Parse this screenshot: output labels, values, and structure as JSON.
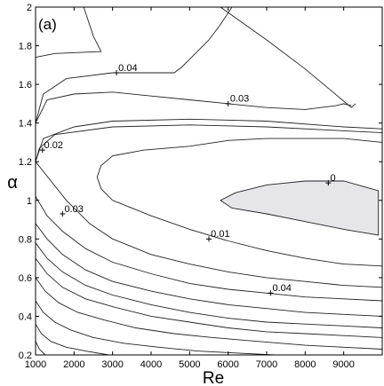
{
  "chart_data": {
    "type": "contour",
    "panel_label": "(a)",
    "xlabel": "Re",
    "ylabel": "α",
    "xlim": [
      1000,
      10000
    ],
    "ylim": [
      0.2,
      2.0
    ],
    "xticks": [
      1000,
      2000,
      3000,
      4000,
      5000,
      6000,
      7000,
      8000,
      9000
    ],
    "yticks": [
      0.2,
      0.4,
      0.6,
      0.8,
      1,
      1.2,
      1.4,
      1.6,
      1.8,
      2
    ],
    "shaded_region": {
      "level": 0,
      "color": "#e6e6ea",
      "boundary": [
        [
          9900,
          1.05
        ],
        [
          9000,
          1.1
        ],
        [
          8000,
          1.1
        ],
        [
          7000,
          1.08
        ],
        [
          6200,
          1.04
        ],
        [
          5800,
          1.0
        ],
        [
          6100,
          0.96
        ],
        [
          7000,
          0.93
        ],
        [
          8000,
          0.89
        ],
        [
          9000,
          0.85
        ],
        [
          9900,
          0.82
        ]
      ]
    },
    "contours": [
      {
        "label": null,
        "points": [
          [
            2250,
            2.0
          ],
          [
            2500,
            1.85
          ],
          [
            2700,
            1.77
          ],
          [
            1500,
            1.76
          ],
          [
            1000,
            1.74
          ]
        ]
      },
      {
        "label": null,
        "points": [
          [
            5800,
            2.0
          ],
          [
            7000,
            1.83
          ],
          [
            8000,
            1.68
          ],
          [
            9200,
            1.48
          ],
          [
            9300,
            1.5
          ]
        ]
      },
      {
        "label": null,
        "points": [
          [
            1000,
            1.4
          ],
          [
            1200,
            1.55
          ],
          [
            1800,
            1.63
          ],
          [
            3000,
            1.66
          ],
          [
            4000,
            1.66
          ],
          [
            4600,
            1.66
          ],
          [
            4800,
            1.69
          ],
          [
            5000,
            1.73
          ],
          [
            5200,
            1.77
          ],
          [
            5500,
            1.83
          ],
          [
            5800,
            1.91
          ],
          [
            6100,
            2.0
          ]
        ]
      },
      {
        "label": null,
        "points": [
          [
            1000,
            1.4
          ],
          [
            1300,
            1.52
          ],
          [
            2000,
            1.55
          ],
          [
            3000,
            1.56
          ],
          [
            4000,
            1.54
          ],
          [
            5000,
            1.52
          ],
          [
            6000,
            1.5
          ],
          [
            7000,
            1.48
          ],
          [
            8000,
            1.47
          ],
          [
            8800,
            1.49
          ],
          [
            9000,
            1.5
          ],
          [
            9200,
            1.49
          ]
        ]
      },
      {
        "label": "0.04",
        "at": [
          3100,
          1.66
        ],
        "text_at": [
          3150,
          1.67
        ]
      },
      {
        "label": "0.03",
        "at": [
          6000,
          1.5
        ],
        "text_at": [
          6050,
          1.51
        ]
      },
      {
        "label": null,
        "points": [
          [
            1000,
            1.2
          ],
          [
            1200,
            1.32
          ],
          [
            2000,
            1.38
          ],
          [
            3000,
            1.41
          ],
          [
            5000,
            1.42
          ],
          [
            7000,
            1.41
          ],
          [
            9000,
            1.38
          ],
          [
            10000,
            1.37
          ]
        ]
      },
      {
        "label": "0.02",
        "at": [
          1180,
          1.26
        ],
        "text_at": [
          1220,
          1.27
        ]
      },
      {
        "label": null,
        "points": [
          [
            1000,
            1.2
          ],
          [
            1100,
            1.27
          ],
          [
            1500,
            1.34
          ],
          [
            3000,
            1.38
          ],
          [
            5000,
            1.39
          ],
          [
            7000,
            1.38
          ],
          [
            9000,
            1.36
          ],
          [
            10000,
            1.35
          ]
        ]
      },
      {
        "label": null,
        "points": [
          [
            10000,
            1.3
          ],
          [
            9000,
            1.32
          ],
          [
            7000,
            1.32
          ],
          [
            6000,
            1.31
          ],
          [
            5000,
            1.28
          ],
          [
            3800,
            1.26
          ],
          [
            3000,
            1.23
          ],
          [
            2700,
            1.18
          ],
          [
            2600,
            1.12
          ],
          [
            2700,
            1.06
          ],
          [
            3000,
            1.0
          ],
          [
            4000,
            0.92
          ],
          [
            5000,
            0.85
          ],
          [
            6000,
            0.79
          ],
          [
            7000,
            0.74
          ],
          [
            8000,
            0.7
          ],
          [
            9000,
            0.67
          ],
          [
            10000,
            0.66
          ]
        ]
      },
      {
        "label": "0.01",
        "at": [
          5500,
          0.8
        ],
        "text_at": [
          5550,
          0.81
        ]
      },
      {
        "label": "0.03",
        "at": [
          1700,
          0.93
        ],
        "text_at": [
          1750,
          0.94
        ]
      },
      {
        "label": "0",
        "at": [
          8600,
          1.09
        ],
        "text_at": [
          8650,
          1.1
        ]
      },
      {
        "label": "0.04",
        "at": [
          7100,
          0.52
        ],
        "text_at": [
          7150,
          0.53
        ]
      },
      {
        "label": null,
        "points": [
          [
            1000,
            1.2
          ],
          [
            1400,
            1.1
          ],
          [
            1800,
            1.0
          ],
          [
            2400,
            0.88
          ],
          [
            3000,
            0.8
          ],
          [
            4000,
            0.72
          ],
          [
            5000,
            0.67
          ],
          [
            6000,
            0.63
          ],
          [
            7000,
            0.6
          ],
          [
            8000,
            0.58
          ],
          [
            9000,
            0.56
          ],
          [
            10000,
            0.55
          ]
        ]
      },
      {
        "label": null,
        "points": [
          [
            1000,
            1.02
          ],
          [
            1300,
            0.92
          ],
          [
            1700,
            0.84
          ],
          [
            2300,
            0.75
          ],
          [
            3000,
            0.68
          ],
          [
            4000,
            0.62
          ],
          [
            5000,
            0.57
          ],
          [
            6000,
            0.54
          ],
          [
            7000,
            0.52
          ],
          [
            8000,
            0.5
          ],
          [
            9000,
            0.49
          ],
          [
            10000,
            0.48
          ]
        ]
      },
      {
        "label": null,
        "points": [
          [
            1000,
            0.88
          ],
          [
            1300,
            0.8
          ],
          [
            1700,
            0.72
          ],
          [
            2300,
            0.64
          ],
          [
            3000,
            0.58
          ],
          [
            4000,
            0.53
          ],
          [
            5000,
            0.49
          ],
          [
            6000,
            0.46
          ],
          [
            7000,
            0.44
          ],
          [
            8000,
            0.42
          ],
          [
            9000,
            0.41
          ],
          [
            10000,
            0.4
          ]
        ]
      },
      {
        "label": null,
        "points": [
          [
            1000,
            0.78
          ],
          [
            1300,
            0.7
          ],
          [
            1700,
            0.63
          ],
          [
            2300,
            0.56
          ],
          [
            3000,
            0.51
          ],
          [
            4000,
            0.46
          ],
          [
            5000,
            0.42
          ],
          [
            6000,
            0.39
          ],
          [
            7000,
            0.37
          ],
          [
            8000,
            0.36
          ],
          [
            9000,
            0.35
          ],
          [
            10000,
            0.34
          ]
        ]
      },
      {
        "label": null,
        "points": [
          [
            1000,
            0.7
          ],
          [
            1300,
            0.62
          ],
          [
            1700,
            0.55
          ],
          [
            2300,
            0.49
          ],
          [
            3000,
            0.45
          ],
          [
            4000,
            0.4
          ],
          [
            5000,
            0.37
          ],
          [
            6000,
            0.34
          ],
          [
            7000,
            0.32
          ],
          [
            8000,
            0.31
          ],
          [
            9000,
            0.3
          ],
          [
            10000,
            0.29
          ]
        ]
      },
      {
        "label": null,
        "points": [
          [
            1000,
            0.6
          ],
          [
            1250,
            0.53
          ],
          [
            1600,
            0.47
          ],
          [
            2100,
            0.42
          ],
          [
            2800,
            0.38
          ],
          [
            3600,
            0.34
          ],
          [
            4600,
            0.31
          ],
          [
            5600,
            0.29
          ],
          [
            6800,
            0.27
          ],
          [
            8000,
            0.25
          ],
          [
            9000,
            0.24
          ],
          [
            10000,
            0.23
          ]
        ]
      },
      {
        "label": null,
        "points": [
          [
            1000,
            0.48
          ],
          [
            1200,
            0.42
          ],
          [
            1500,
            0.37
          ],
          [
            1900,
            0.33
          ],
          [
            2500,
            0.29
          ],
          [
            3300,
            0.26
          ],
          [
            4200,
            0.24
          ],
          [
            5200,
            0.22
          ],
          [
            6200,
            0.21
          ],
          [
            7200,
            0.2
          ]
        ]
      },
      {
        "label": null,
        "points": [
          [
            1000,
            0.36
          ],
          [
            1150,
            0.31
          ],
          [
            1400,
            0.27
          ],
          [
            1800,
            0.24
          ],
          [
            2300,
            0.22
          ],
          [
            2900,
            0.2
          ]
        ]
      },
      {
        "label": null,
        "points": [
          [
            1000,
            0.27
          ],
          [
            1100,
            0.23
          ],
          [
            1250,
            0.2
          ]
        ]
      }
    ]
  }
}
